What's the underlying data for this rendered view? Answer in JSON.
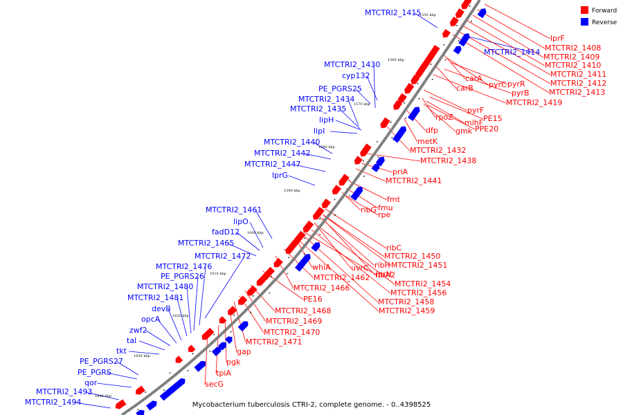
{
  "caption": "Mycobacterium tuberculosis CTRI-2, complete genome. - 0..4398525",
  "legend": [
    {
      "label": "Forward",
      "color": "#ff0000"
    },
    {
      "label": "Reverse",
      "color": "#0000ff"
    }
  ],
  "colors": {
    "forward": "#ff0000",
    "reverse": "#0000ff",
    "axis": "#808080",
    "tick": "#000000"
  },
  "kbp_ticks": [
    "1550 kbp",
    "1560 kbp",
    "1570 kbp",
    "1580 kbp",
    "1590 kbp",
    "1600 kbp",
    "1610 kbp",
    "1620 kbp",
    "1630 kbp",
    "1640 kbp"
  ],
  "reverse_labels": [
    "MTCTRI2_1415",
    "MTCTRI2_1414",
    "MTCTRI2_1430",
    "cyp132",
    "PE_PGRS25",
    "MTCTRI2_1434",
    "MTCTRI2_1435",
    "lipH",
    "lipI",
    "MTCTRI2_1440",
    "MTCTRI2_1442",
    "MTCTRI2_1447",
    "lprG",
    "MTCTRI2_1461",
    "lipO",
    "fadD12",
    "MTCTRI2_1465",
    "MTCTRI2_1472",
    "MTCTRI2_1476",
    "PE_PGRS26",
    "MTCTRI2_1480",
    "MTCTRI2_1481",
    "devB",
    "opcA",
    "zwf2",
    "tal",
    "tkt",
    "PE_PGRS27",
    "PE_PGRS",
    "qor",
    "MTCTRI2_1493",
    "MTCTRI2_1494"
  ],
  "forward_labels": [
    "lprF",
    "MTCTRI2_1408",
    "MTCTRI2_1409",
    "MTCTRI2_1410",
    "MTCTRI2_1411",
    "MTCTRI2_1412",
    "MTCTRI2_1413",
    "carA",
    "pyrC",
    "pyrR",
    "carB",
    "pyrB",
    "MTCTRI2_1419",
    "pyrF",
    "rpoZ",
    "PE15",
    "mihF",
    "gmk",
    "PPE20",
    "dfp",
    "metK",
    "MTCTRI2_1432",
    "MTCTRI2_1438",
    "priA",
    "MTCTRI2_1441",
    "fmt",
    "fmu",
    "ribG",
    "rpe",
    "ribC",
    "MTCTRI2_1450",
    "whiA",
    "ribH",
    "MTCTRI2_1451",
    "uvrC",
    "ribA2",
    "lprH",
    "MTCTRI2_1462",
    "MTCTRI2_1454",
    "MTCTRI2_1466",
    "MTCTRI2_1456",
    "PE16",
    "MTCTRI2_1458",
    "MTCTRI2_1459",
    "MTCTRI2_1468",
    "MTCTRI2_1469",
    "MTCTRI2_1470",
    "MTCTRI2_1471",
    "gap",
    "pgk",
    "tpiA",
    "secG"
  ]
}
